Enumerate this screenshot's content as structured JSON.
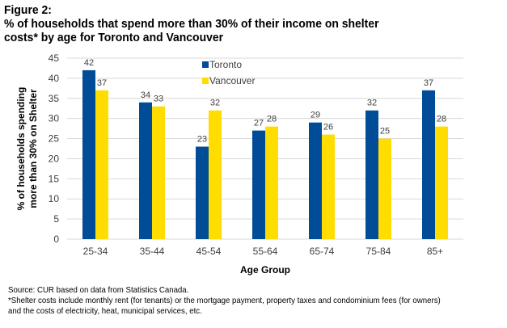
{
  "title": {
    "figure": "Figure 2:",
    "line1": "% of households that spend more than 30% of their income on shelter",
    "line2": "costs* by age for Toronto and Vancouver"
  },
  "footer": {
    "source": "Source: CUR  based on data from Statistics Canada.",
    "note1": "*Shelter costs include monthly rent (for tenants) or the mortgage payment, property taxes and condominium  fees (for owners)",
    "note2": "and the costs of electricity, heat, municipal services, etc."
  },
  "chart_data": {
    "type": "bar",
    "title": "% of households that spend more than 30% of their income on shelter costs* by age for Toronto and Vancouver",
    "xlabel": "Age Group",
    "ylabel": "% of households spending more than 30% on Shelter",
    "ylim": [
      0,
      45
    ],
    "yticks": [
      0,
      5,
      10,
      15,
      20,
      25,
      30,
      35,
      40,
      45
    ],
    "grid": true,
    "legend_position": "top-center",
    "categories": [
      "25-34",
      "35-44",
      "45-54",
      "55-64",
      "65-74",
      "75-84",
      "85+"
    ],
    "series": [
      {
        "name": "Toronto",
        "color": "#004C97",
        "values": [
          42,
          34,
          23,
          27,
          29,
          32,
          37
        ]
      },
      {
        "name": "Vancouver",
        "color": "#FFDD00",
        "values": [
          37,
          33,
          32,
          28,
          26,
          25,
          28
        ]
      }
    ]
  }
}
